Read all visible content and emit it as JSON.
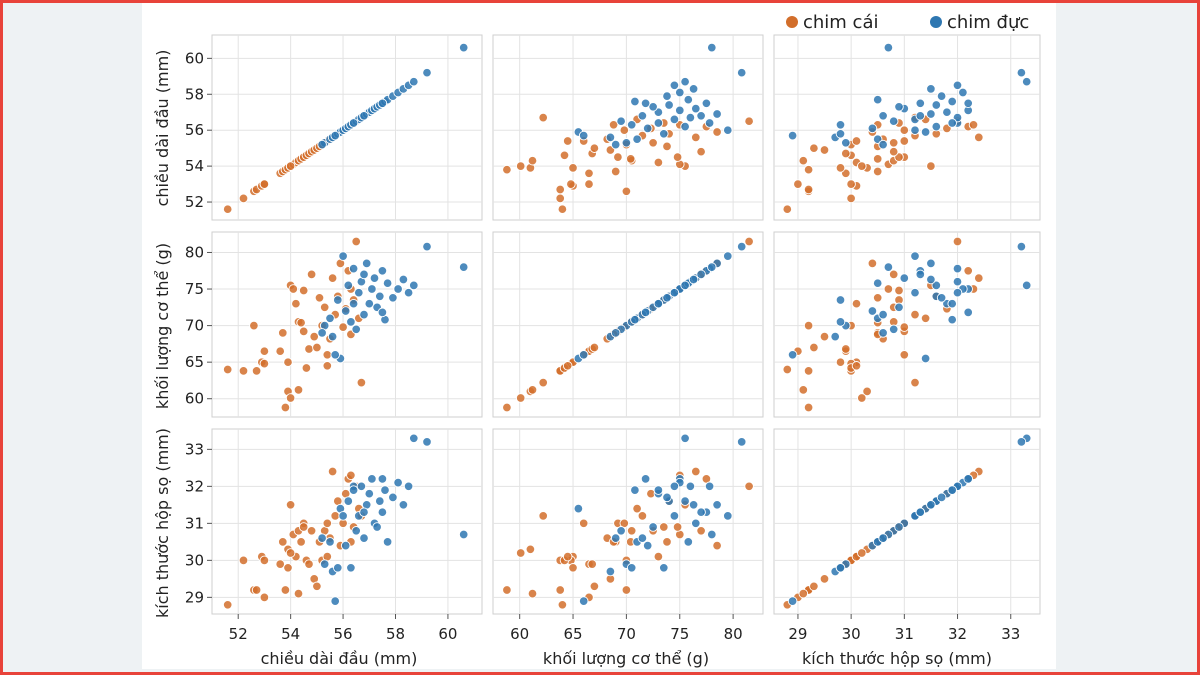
{
  "chart_data": {
    "type": "scatter",
    "subtype": "pairplot",
    "title": "",
    "legend_position": "top-right",
    "colors": {
      "chim cái": "#d26e2b",
      "chim đực": "#2e77b1"
    },
    "legend": [
      {
        "label": "chim cái",
        "color": "#d26e2b"
      },
      {
        "label": "chim đực",
        "color": "#2e77b1"
      }
    ],
    "variables": [
      {
        "key": "head",
        "label": "chiều dài đầu (mm)",
        "range": [
          51,
          61.3
        ],
        "ticks": [
          52,
          54,
          56,
          58,
          60
        ]
      },
      {
        "key": "mass",
        "label": "khối lượng cơ thể (g)",
        "range": [
          57.5,
          82.8
        ],
        "ticks": [
          60,
          65,
          70,
          75,
          80
        ]
      },
      {
        "key": "skull",
        "label": "kích thước hộp sọ (mm)",
        "range": [
          28.55,
          33.55
        ],
        "ticks": [
          29,
          30,
          31,
          32,
          33
        ]
      }
    ],
    "series": [
      {
        "name": "chim cái",
        "points": [
          [
            51.6,
            64.0,
            28.8
          ],
          [
            52.2,
            63.8,
            30.0
          ],
          [
            52.6,
            70.0,
            29.2
          ],
          [
            52.7,
            63.8,
            29.2
          ],
          [
            52.9,
            65.0,
            30.1
          ],
          [
            53.0,
            66.5,
            29.0
          ],
          [
            53.0,
            64.8,
            30.0
          ],
          [
            53.6,
            66.5,
            29.9
          ],
          [
            53.7,
            69.0,
            30.5
          ],
          [
            53.8,
            58.8,
            29.2
          ],
          [
            53.9,
            61.0,
            30.3
          ],
          [
            53.9,
            65.0,
            29.8
          ],
          [
            54.0,
            75.5,
            31.5
          ],
          [
            54.1,
            75.0,
            30.7
          ],
          [
            54.2,
            73.0,
            30.1
          ],
          [
            54.3,
            61.2,
            29.1
          ],
          [
            54.3,
            70.5,
            30.8
          ],
          [
            54.4,
            70.4,
            30.5
          ],
          [
            54.5,
            69.2,
            31.0
          ],
          [
            54.5,
            74.8,
            30.9
          ],
          [
            54.6,
            64.2,
            30.0
          ],
          [
            54.7,
            66.8,
            29.9
          ],
          [
            54.8,
            77.0,
            30.8
          ],
          [
            54.9,
            68.5,
            29.5
          ],
          [
            55.0,
            67.0,
            29.3
          ],
          [
            55.1,
            73.8,
            30.5
          ],
          [
            55.2,
            70.0,
            30.0
          ],
          [
            55.3,
            72.5,
            30.8
          ],
          [
            55.4,
            66.0,
            31.0
          ],
          [
            55.5,
            68.2,
            30.6
          ],
          [
            55.6,
            76.5,
            32.4
          ],
          [
            55.7,
            71.5,
            31.2
          ],
          [
            55.8,
            74.0,
            31.6
          ],
          [
            55.9,
            78.5,
            30.4
          ],
          [
            56.0,
            69.8,
            31.0
          ],
          [
            56.1,
            72.3,
            31.8
          ],
          [
            56.2,
            77.5,
            32.2
          ],
          [
            56.3,
            75.0,
            32.3
          ],
          [
            56.4,
            73.5,
            30.9
          ],
          [
            56.5,
            81.5,
            32.0
          ],
          [
            56.6,
            71.0,
            31.4
          ],
          [
            56.7,
            62.2,
            31.2
          ],
          [
            56.3,
            68.8,
            30.5
          ],
          [
            55.4,
            64.5,
            30.1
          ],
          [
            54.0,
            60.1,
            30.2
          ]
        ]
      },
      {
        "name": "chim đực",
        "points": [
          [
            55.3,
            70.0,
            29.9
          ],
          [
            55.5,
            71.0,
            30.5
          ],
          [
            55.6,
            68.5,
            29.7
          ],
          [
            55.8,
            73.5,
            29.8
          ],
          [
            55.9,
            65.5,
            31.4
          ],
          [
            56.0,
            79.5,
            31.2
          ],
          [
            56.1,
            72.0,
            30.4
          ],
          [
            56.2,
            75.5,
            31.6
          ],
          [
            56.3,
            70.5,
            29.8
          ],
          [
            56.4,
            77.8,
            32.0
          ],
          [
            56.5,
            69.5,
            30.8
          ],
          [
            56.6,
            74.5,
            31.2
          ],
          [
            56.7,
            76.0,
            32.0
          ],
          [
            56.8,
            71.5,
            30.6
          ],
          [
            56.9,
            78.5,
            31.5
          ],
          [
            57.0,
            73.0,
            31.8
          ],
          [
            57.1,
            75.0,
            32.2
          ],
          [
            57.2,
            76.5,
            31.0
          ],
          [
            57.3,
            72.5,
            30.9
          ],
          [
            57.4,
            74.0,
            31.6
          ],
          [
            57.5,
            77.5,
            31.3
          ],
          [
            57.6,
            70.8,
            31.9
          ],
          [
            57.7,
            75.8,
            30.5
          ],
          [
            57.9,
            73.8,
            31.7
          ],
          [
            58.1,
            75.0,
            32.1
          ],
          [
            58.3,
            76.3,
            31.5
          ],
          [
            58.5,
            74.5,
            32.0
          ],
          [
            58.7,
            75.5,
            33.3
          ],
          [
            59.2,
            80.8,
            33.2
          ],
          [
            60.6,
            78.0,
            30.7
          ],
          [
            55.7,
            66.0,
            28.9
          ],
          [
            56.4,
            73.0,
            31.9
          ],
          [
            56.8,
            77.0,
            31.3
          ],
          [
            57.5,
            71.8,
            32.2
          ],
          [
            55.2,
            69.0,
            30.6
          ]
        ]
      }
    ]
  }
}
